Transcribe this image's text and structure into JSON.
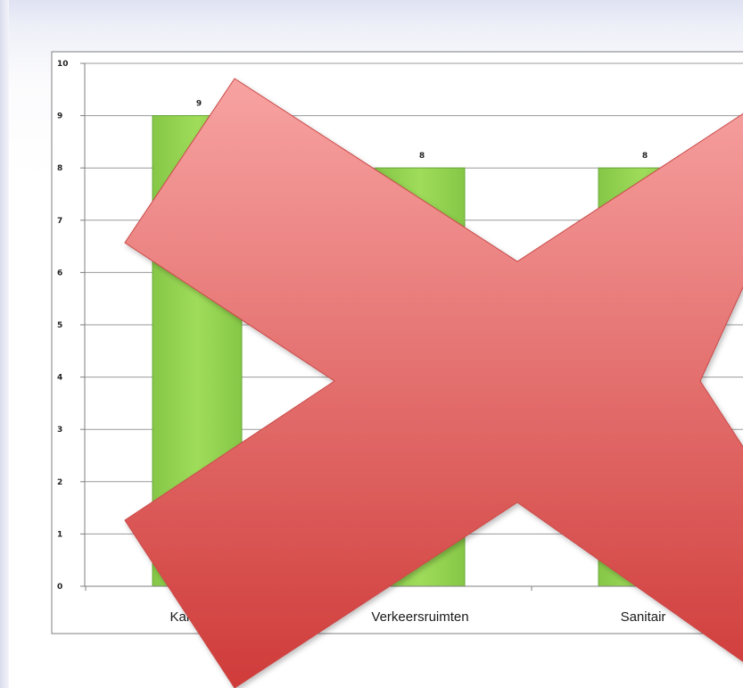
{
  "chart_data": {
    "type": "bar",
    "categories": [
      "Kantoren",
      "Verkeersruimten",
      "Sanitair"
    ],
    "values": [
      9,
      8,
      8
    ],
    "ylim": [
      0,
      10
    ],
    "yticks": [
      0,
      1,
      2,
      3,
      4,
      5,
      6,
      7,
      8,
      9,
      10
    ],
    "data_labels": [
      "9",
      "8",
      "8"
    ],
    "grid": true,
    "legend": "none",
    "title": "",
    "xlabel": "",
    "ylabel": ""
  },
  "colors": {
    "bar": "#92d050",
    "bar_edge": "#6aa83a",
    "cross_top": "#f49a99",
    "cross_bottom": "#d13c3a",
    "grid": "#9a9a9a"
  },
  "overlay": {
    "icon": "cross-icon"
  }
}
